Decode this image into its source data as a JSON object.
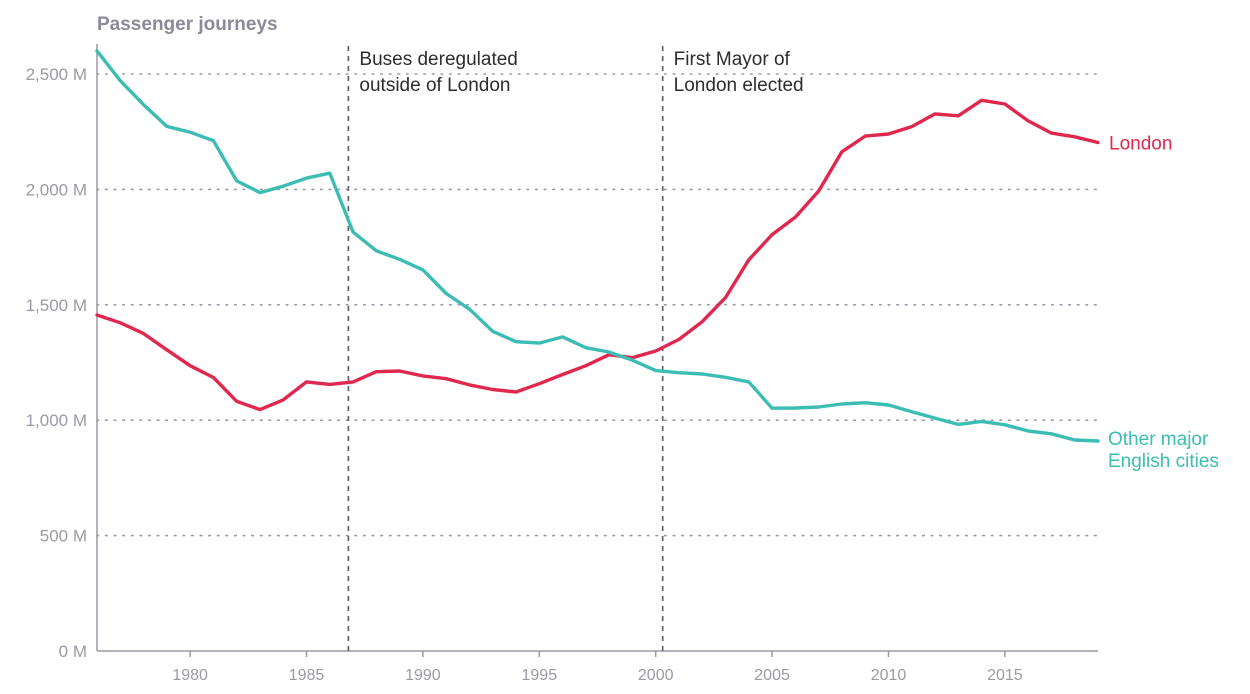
{
  "chart_data": {
    "type": "line",
    "title": "",
    "ylabel": "Passenger journeys",
    "xlabel": "",
    "xlim": [
      1976,
      2019
    ],
    "ylim": [
      0,
      2500
    ],
    "yticks": [
      0,
      500,
      1000,
      1500,
      2000,
      2500
    ],
    "ytick_labels": [
      "0 M",
      "500 M",
      "1,000 M",
      "1,500 M",
      "2,000 M",
      "2,500 M"
    ],
    "xticks": [
      1980,
      1985,
      1990,
      1995,
      2000,
      2005,
      2010,
      2015
    ],
    "xtick_labels": [
      "1980",
      "1985",
      "1990",
      "1995",
      "2000",
      "2005",
      "2010",
      "2015"
    ],
    "grid": "horizontal dotted",
    "x": [
      1976,
      1977,
      1978,
      1979,
      1980,
      1981,
      1982,
      1983,
      1984,
      1985,
      1986,
      1987,
      1988,
      1989,
      1990,
      1991,
      1992,
      1993,
      1994,
      1995,
      1996,
      1997,
      1998,
      1999,
      2000,
      2001,
      2002,
      2003,
      2004,
      2005,
      2006,
      2007,
      2008,
      2009,
      2010,
      2011,
      2012,
      2013,
      2014,
      2015,
      2016,
      2017,
      2018,
      2019
    ],
    "series": [
      {
        "name": "London",
        "color": "#e0284f",
        "values": [
          1456,
          1422,
          1375,
          1305,
          1236,
          1185,
          1082,
          1046,
          1088,
          1166,
          1155,
          1166,
          1210,
          1213,
          1192,
          1180,
          1153,
          1133,
          1122,
          1158,
          1198,
          1236,
          1284,
          1271,
          1300,
          1350,
          1427,
          1531,
          1695,
          1804,
          1880,
          1993,
          2163,
          2231,
          2240,
          2272,
          2327,
          2319,
          2386,
          2370,
          2297,
          2244,
          2228,
          2203
        ]
      },
      {
        "name": "Other major English cities",
        "color": "#3bbdb3",
        "values": [
          2600,
          2471,
          2367,
          2273,
          2248,
          2211,
          2037,
          1986,
          2014,
          2049,
          2070,
          1815,
          1734,
          1697,
          1651,
          1549,
          1481,
          1385,
          1340,
          1334,
          1361,
          1314,
          1295,
          1260,
          1215,
          1206,
          1200,
          1186,
          1166,
          1052,
          1053,
          1057,
          1070,
          1076,
          1066,
          1037,
          1009,
          982,
          995,
          980,
          953,
          941,
          914,
          910
        ]
      }
    ],
    "series_labels": {
      "london": [
        "London"
      ],
      "other": [
        "Other major",
        "English cities"
      ]
    },
    "annotations": [
      {
        "x": 1986.8,
        "lines": [
          "Buses deregulated",
          "outside of London"
        ]
      },
      {
        "x": 2000.3,
        "lines": [
          "First Mayor of",
          "London elected"
        ]
      }
    ]
  }
}
